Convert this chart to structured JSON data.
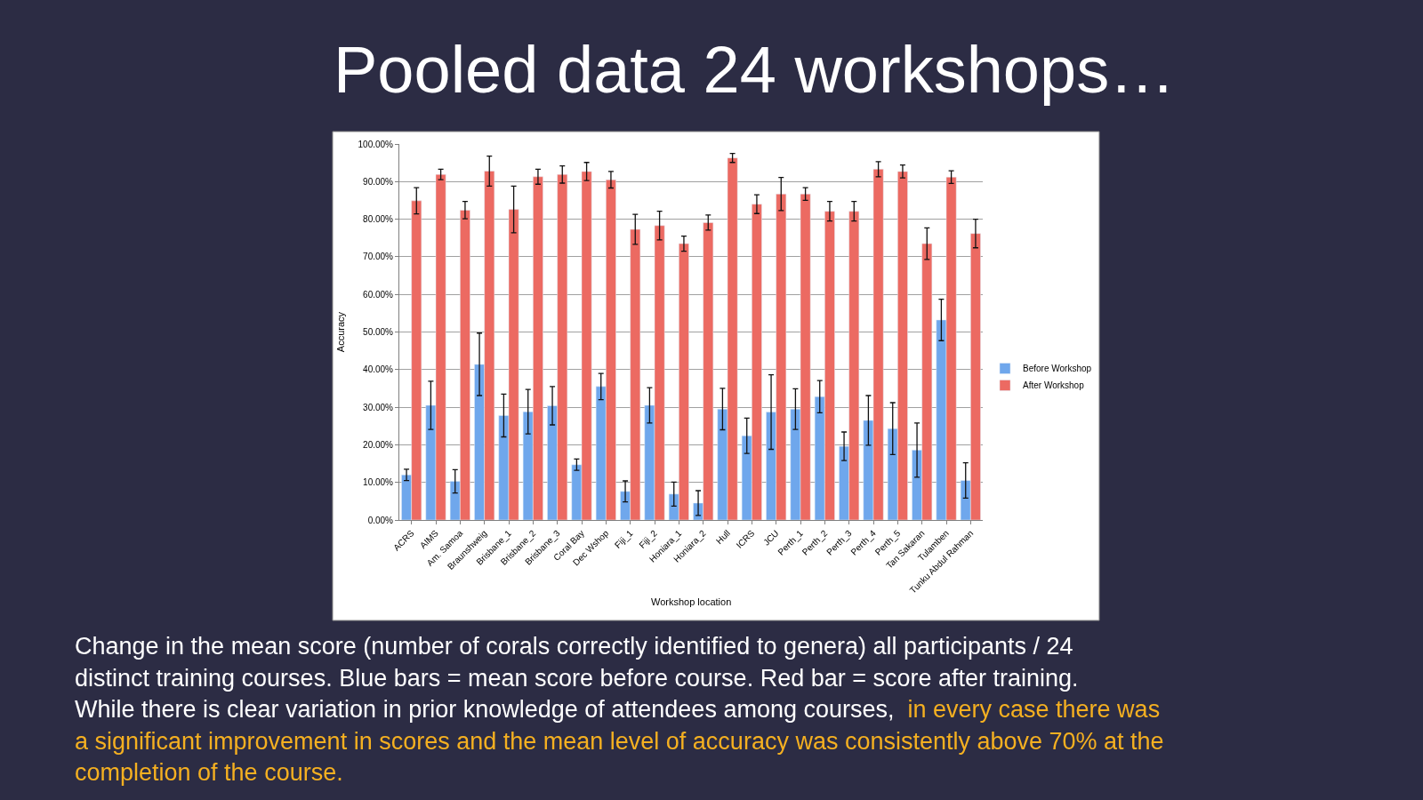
{
  "chart_data": {
    "type": "bar",
    "title": "Pooled data 24 workshops…",
    "xlabel": "Workshop location",
    "ylabel": "Accuracy",
    "categories": [
      "ACRS",
      "AIMS",
      "Am. Samoa",
      "Braunshweig",
      "Brisbane_1",
      "Brisbane_2",
      "Brisbane_3",
      "Coral Bay",
      "Dec Wshop",
      "Fiji_1",
      "Fiji_2",
      "Honiara_1",
      "Honiara_2",
      "Hull",
      "ICRS",
      "JCU",
      "Perth_1",
      "Perth_2",
      "Perth_3",
      "Perth_4",
      "Perth_5",
      "Tan Sakaran",
      "Tulamben",
      "Tunku Abdul Rahman"
    ],
    "series": [
      {
        "name": "Before Workshop",
        "color": "#6fa7ec",
        "values": [
          12.0,
          30.5,
          10.3,
          41.4,
          27.8,
          28.8,
          30.4,
          14.7,
          35.5,
          7.6,
          30.5,
          6.9,
          4.5,
          29.5,
          22.4,
          28.7,
          29.5,
          32.8,
          19.6,
          26.5,
          24.3,
          18.6,
          53.2,
          10.5
        ],
        "errors": [
          1.5,
          6.4,
          3.1,
          8.3,
          5.7,
          5.9,
          5.1,
          1.5,
          3.5,
          2.8,
          4.7,
          3.2,
          3.3,
          5.5,
          4.7,
          9.9,
          5.4,
          4.3,
          3.8,
          6.6,
          6.9,
          7.2,
          5.5,
          4.7
        ]
      },
      {
        "name": "After Workshop",
        "color": "#ec6a62",
        "values": [
          84.9,
          91.9,
          82.4,
          92.8,
          82.6,
          91.3,
          91.9,
          92.7,
          90.5,
          77.3,
          78.3,
          73.5,
          79.1,
          96.3,
          84.0,
          86.7,
          86.7,
          82.1,
          82.1,
          93.3,
          92.7,
          73.5,
          91.2,
          76.2
        ],
        "errors": [
          3.5,
          1.4,
          2.3,
          4.0,
          6.2,
          2.0,
          2.3,
          2.4,
          2.2,
          4.0,
          3.8,
          2.0,
          2.0,
          1.2,
          2.5,
          4.4,
          1.7,
          2.6,
          2.6,
          2.0,
          1.7,
          4.2,
          1.7,
          3.8
        ]
      }
    ],
    "ylim": [
      0,
      100
    ],
    "yticks": [
      {
        "value": 0,
        "label": "0.00%"
      },
      {
        "value": 10,
        "label": "10.00%"
      },
      {
        "value": 20,
        "label": "20.00%"
      },
      {
        "value": 30,
        "label": "30.00%"
      },
      {
        "value": 40,
        "label": "40.00%"
      },
      {
        "value": 50,
        "label": "50.00%"
      },
      {
        "value": 60,
        "label": "60.00%"
      },
      {
        "value": 70,
        "label": "70.00%"
      },
      {
        "value": 80,
        "label": "80.00%"
      },
      {
        "value": 90,
        "label": "90.00%"
      },
      {
        "value": 100,
        "label": "100.00%"
      }
    ],
    "grid": "y",
    "legend": "right",
    "annotations": [
      "Change in the mean score (number of corals correctly identified to genera) all participants / 24 distinct training courses. Blue bars = mean score before course. Red bar = score after training.  While there is clear variation in prior knowledge of attendees among courses, ",
      "in every case there was a significant improvement in scores and the mean level of accuracy was consistently above 70% at the completion of the course."
    ]
  }
}
